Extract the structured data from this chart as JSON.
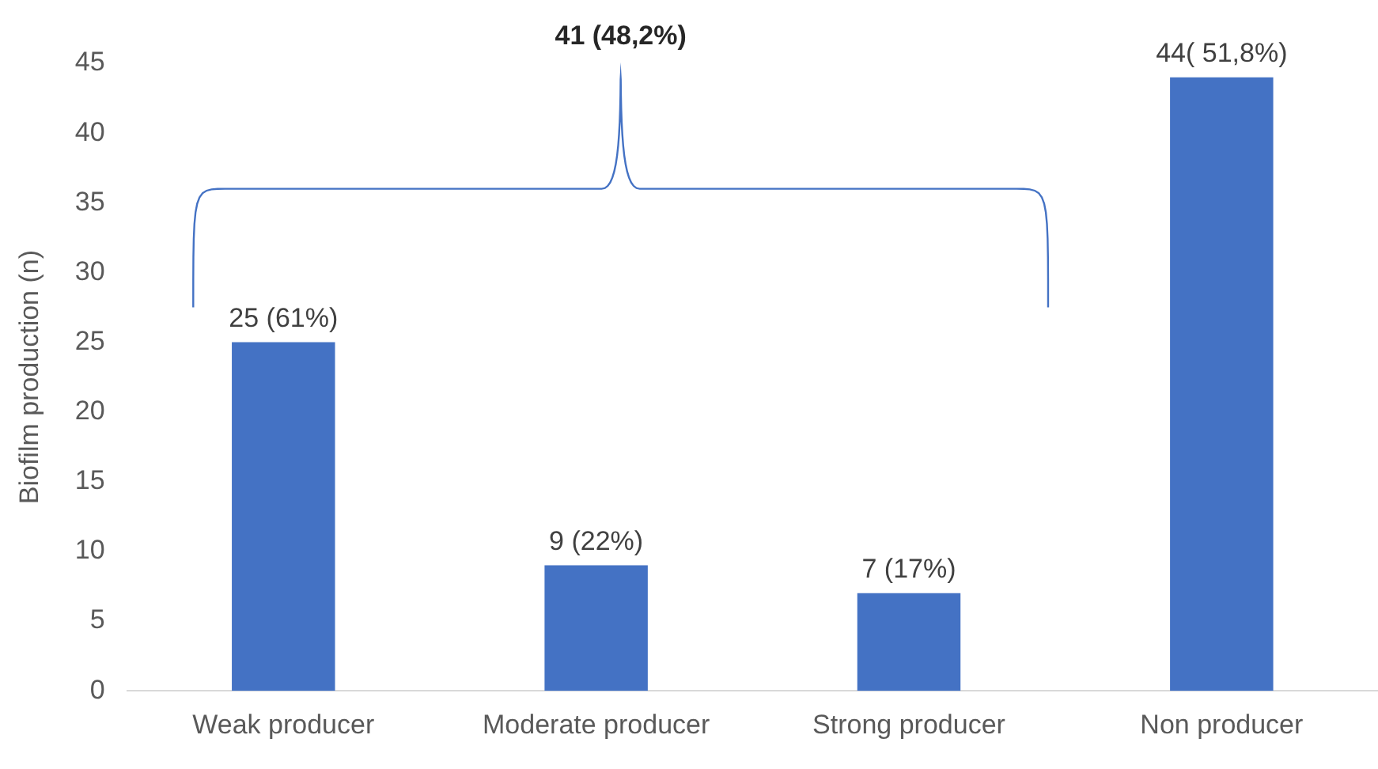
{
  "chart_data": {
    "type": "bar",
    "ylabel": "Biofilm production (n)",
    "categories": [
      "Weak producer",
      "Moderate producer",
      "Strong producer",
      "Non producer"
    ],
    "values": [
      25,
      9,
      7,
      44
    ],
    "value_labels": [
      "25 (61%)",
      "9 (22%)",
      "7 (17%)",
      "44( 51,8%)"
    ],
    "color": "#4472c4",
    "ylim": [
      0,
      45
    ],
    "yticks": [
      0,
      5,
      10,
      15,
      20,
      25,
      30,
      35,
      40,
      45
    ],
    "grid": false,
    "legend": false,
    "annotations": [
      "41 (48,2%)"
    ]
  }
}
